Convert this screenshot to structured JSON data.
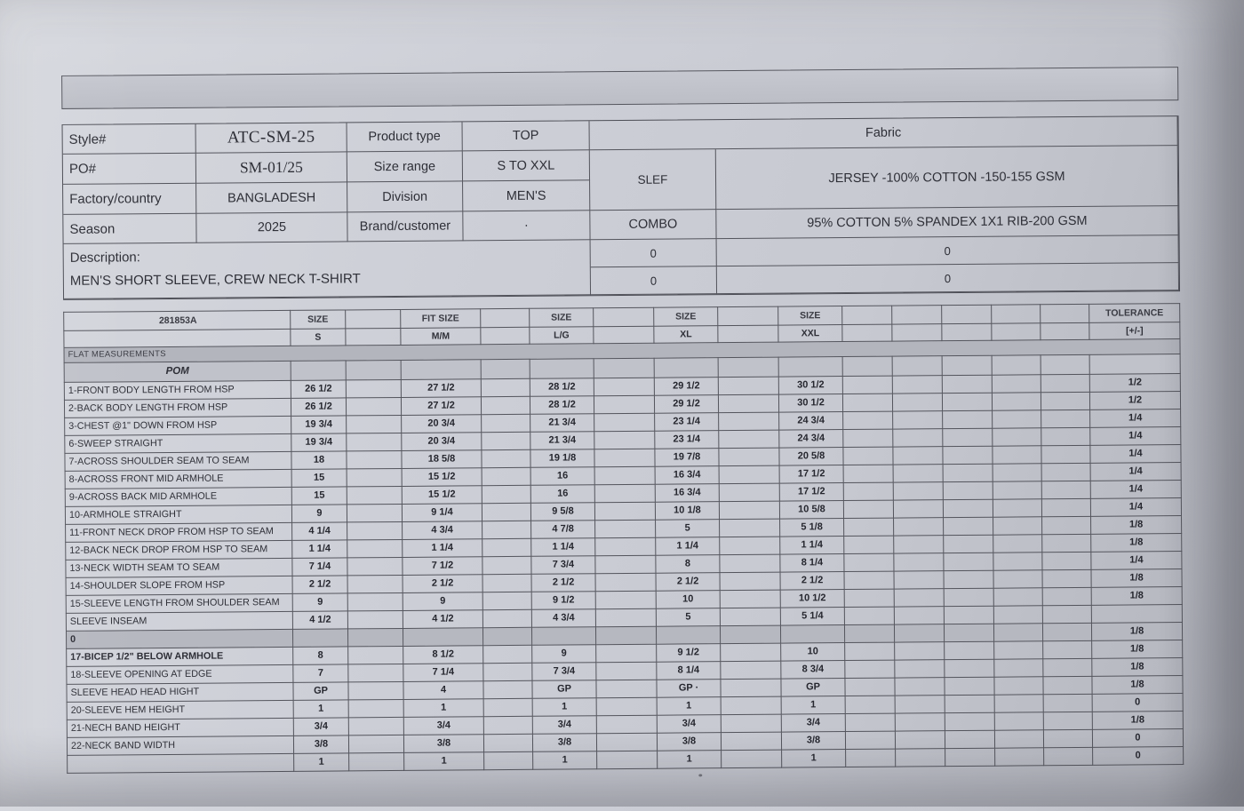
{
  "header": {
    "fields": [
      {
        "label": "Style#",
        "value": "ATC-SM-25"
      },
      {
        "label": "PO#",
        "value": "SM-01/25"
      },
      {
        "label": "Factory/country",
        "value": "BANGLADESH"
      },
      {
        "label": "Season",
        "value": "2025"
      }
    ],
    "fields2": [
      {
        "label": "Product type",
        "value": "TOP"
      },
      {
        "label": "Size range",
        "value": "S TO XXL"
      },
      {
        "label": "Division",
        "value": "MEN'S"
      },
      {
        "label": "Brand/customer",
        "value": "·"
      }
    ],
    "fabric": {
      "title": "Fabric",
      "rows": [
        {
          "part": "SLEF",
          "desc": "JERSEY -100% COTTON -150-155 GSM"
        },
        {
          "part": "COMBO",
          "desc": "95% COTTON 5% SPANDEX 1X1 RIB-200 GSM"
        },
        {
          "part": "0",
          "desc": "0"
        },
        {
          "part": "0",
          "desc": "0"
        }
      ]
    },
    "description_label": "Description:",
    "description_value": "MEN'S SHORT SLEEVE, CREW NECK T-SHIRT"
  },
  "table": {
    "doc_code": "281853A",
    "col_headers": [
      "SIZE",
      "FIT SIZE",
      "SIZE",
      "SIZE",
      "SIZE"
    ],
    "sizes": [
      "S",
      "M/M",
      "L/G",
      "XL",
      "XXL"
    ],
    "tolerance_label": "TOLERANCE",
    "tolerance_sub": "[+/-]",
    "section_label": "FLAT MEASUREMENTS",
    "pom_label": "POM",
    "rows": [
      {
        "label": "1-FRONT BODY LENGTH FROM HSP",
        "values": [
          "26 1/2",
          "27 1/2",
          "28 1/2",
          "29 1/2",
          "30 1/2"
        ],
        "tol": "1/2"
      },
      {
        "label": "2-BACK BODY LENGTH FROM HSP",
        "values": [
          "26 1/2",
          "27 1/2",
          "28 1/2",
          "29 1/2",
          "30 1/2"
        ],
        "tol": "1/2"
      },
      {
        "label": "3-CHEST @1\" DOWN FROM HSP",
        "values": [
          "19 3/4",
          "20 3/4",
          "21 3/4",
          "23 1/4",
          "24 3/4"
        ],
        "tol": "1/4"
      },
      {
        "label": "6-SWEEP STRAIGHT",
        "values": [
          "19 3/4",
          "20 3/4",
          "21 3/4",
          "23 1/4",
          "24 3/4"
        ],
        "tol": "1/4"
      },
      {
        "label": "7-ACROSS SHOULDER SEAM TO SEAM",
        "values": [
          "18",
          "18 5/8",
          "19 1/8",
          "19 7/8",
          "20 5/8"
        ],
        "tol": "1/4"
      },
      {
        "label": "8-ACROSS FRONT MID ARMHOLE",
        "values": [
          "15",
          "15 1/2",
          "16",
          "16 3/4",
          "17 1/2"
        ],
        "tol": "1/4"
      },
      {
        "label": "9-ACROSS BACK MID ARMHOLE",
        "values": [
          "15",
          "15 1/2",
          "16",
          "16 3/4",
          "17 1/2"
        ],
        "tol": "1/4"
      },
      {
        "label": "10-ARMHOLE STRAIGHT",
        "values": [
          "9",
          "9 1/4",
          "9 5/8",
          "10 1/8",
          "10 5/8"
        ],
        "tol": "1/4"
      },
      {
        "label": "11-FRONT NECK DROP FROM HSP TO SEAM",
        "values": [
          "4 1/4",
          "4 3/4",
          "4 7/8",
          "5",
          "5 1/8"
        ],
        "tol": "1/8"
      },
      {
        "label": "12-BACK NECK DROP FROM HSP TO SEAM",
        "values": [
          "1 1/4",
          "1 1/4",
          "1 1/4",
          "1 1/4",
          "1 1/4"
        ],
        "tol": "1/8"
      },
      {
        "label": "13-NECK WIDTH SEAM TO SEAM",
        "values": [
          "7 1/4",
          "7 1/2",
          "7 3/4",
          "8",
          "8 1/4"
        ],
        "tol": "1/4"
      },
      {
        "label": "14-SHOULDER SLOPE FROM HSP",
        "values": [
          "2 1/2",
          "2 1/2",
          "2 1/2",
          "2 1/2",
          "2 1/2"
        ],
        "tol": "1/8"
      },
      {
        "label": "15-SLEEVE LENGTH FROM SHOULDER SEAM",
        "values": [
          "9",
          "9",
          "9 1/2",
          "10",
          "10 1/2"
        ],
        "tol": "1/8"
      },
      {
        "label": "SLEEVE INSEAM",
        "values": [
          "4 1/2",
          "4 1/2",
          "4 3/4",
          "5",
          "5 1/4"
        ],
        "tol": ""
      },
      {
        "label": "0",
        "values": [
          "",
          "",
          "",
          "",
          ""
        ],
        "tol": "1/8",
        "gray": true,
        "bold": true
      },
      {
        "label": "17-BICEP 1/2\" BELOW ARMHOLE",
        "values": [
          "8",
          "8 1/2",
          "9",
          "9 1/2",
          "10"
        ],
        "tol": "1/8",
        "bold": true
      },
      {
        "label": "18-SLEEVE OPENING AT EDGE",
        "values": [
          "7",
          "7 1/4",
          "7 3/4",
          "8 1/4",
          "8 3/4"
        ],
        "tol": "1/8"
      },
      {
        "label": "SLEEVE HEAD HEAD HIGHT",
        "values": [
          "GP",
          "4",
          "GP",
          "GP ·",
          "GP"
        ],
        "tol": "1/8"
      },
      {
        "label": "20-SLEEVE HEM HEIGHT",
        "values": [
          "1",
          "1",
          "1",
          "1",
          "1"
        ],
        "tol": "0"
      },
      {
        "label": "21-NECH BAND HEIGHT",
        "values": [
          "3/4",
          "3/4",
          "3/4",
          "3/4",
          "3/4"
        ],
        "tol": "1/8"
      },
      {
        "label": "22-NECK BAND WIDTH",
        "values": [
          "3/8",
          "3/8",
          "3/8",
          "3/8",
          "3/8"
        ],
        "tol": "0"
      },
      {
        "label": "",
        "values": [
          "1",
          "1",
          "1",
          "1",
          "1"
        ],
        "tol": "0"
      }
    ]
  },
  "colors": {
    "paper": "#cdcfd7",
    "grid_line": "#54555d",
    "section_fill": "#b3b5bd",
    "text": "#2e2f37"
  }
}
